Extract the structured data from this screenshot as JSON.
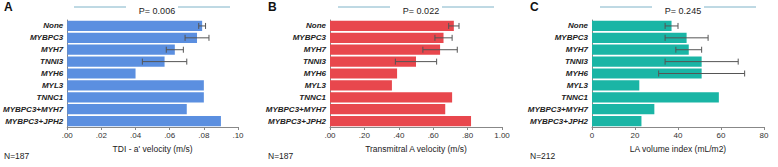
{
  "chart_data": [
    {
      "type": "bar",
      "orientation": "horizontal",
      "panel_label": "A",
      "title": "P= 0.006",
      "annotation": "N=187",
      "xlabel": "TDI - a' velocity (m/s)",
      "color": "#5b8fe0",
      "grid": false,
      "categories": [
        "None",
        "MYBPC3",
        "MYH7",
        "TNNI3",
        "MYH6",
        "MYL3",
        "TNNC1",
        "MYBPC3+MYH7",
        "MYBPC3+JPH2"
      ],
      "values": [
        0.079,
        0.076,
        0.063,
        0.057,
        0.04,
        0.08,
        0.08,
        0.07,
        0.09
      ],
      "errors": [
        0.002,
        0.007,
        0.005,
        0.013,
        null,
        null,
        null,
        null,
        null
      ],
      "xlim": [
        0,
        0.1
      ],
      "xticks": [
        {
          "value": 0,
          "label": ".00"
        },
        {
          "value": 0.02,
          "label": ".02"
        },
        {
          "value": 0.04,
          "label": ".04"
        },
        {
          "value": 0.06,
          "label": ".06"
        },
        {
          "value": 0.08,
          "label": ".08"
        },
        {
          "value": 0.1,
          "label": ".10"
        }
      ]
    },
    {
      "type": "bar",
      "orientation": "horizontal",
      "panel_label": "B",
      "title": "P= 0.022",
      "annotation": "N=187",
      "xlabel": "Transmitral A velocity (m/s)",
      "color": "#e8474d",
      "grid": false,
      "categories": [
        "None",
        "MYBPC3",
        "MYH7",
        "TNNI3",
        "MYH6",
        "MYL3",
        "TNNC1",
        "MYBPC3+MYH7",
        "MYBPC3+JPH2"
      ],
      "values": [
        0.72,
        0.66,
        0.64,
        0.5,
        0.39,
        0.36,
        0.71,
        0.67,
        0.82
      ],
      "errors": [
        0.03,
        0.05,
        0.1,
        0.12,
        null,
        null,
        null,
        null,
        null
      ],
      "xlim": [
        0,
        1.0
      ],
      "xticks": [
        {
          "value": 0,
          "label": ".00"
        },
        {
          "value": 0.2,
          "label": ".20"
        },
        {
          "value": 0.4,
          "label": ".40"
        },
        {
          "value": 0.6,
          "label": ".60"
        },
        {
          "value": 0.8,
          "label": ".80"
        },
        {
          "value": 1.0,
          "label": "1.00"
        }
      ]
    },
    {
      "type": "bar",
      "orientation": "horizontal",
      "panel_label": "C",
      "title": "P= 0.245",
      "annotation": "N=212",
      "xlabel": "LA volume index (mL/m2)",
      "color": "#1ab5a5",
      "grid": false,
      "categories": [
        "None",
        "MYBPC3",
        "MYH7",
        "TNNI3",
        "MYH6",
        "MYL3",
        "TNNC1",
        "MYBPC3+MYH7",
        "MYBPC3+JPH2"
      ],
      "values": [
        37,
        44,
        45,
        51,
        51,
        22,
        59,
        29,
        23
      ],
      "errors": [
        3,
        10,
        6,
        17,
        20,
        null,
        null,
        null,
        null
      ],
      "xlim": [
        0,
        80
      ],
      "xticks": [
        0,
        20,
        40,
        60,
        80
      ]
    }
  ]
}
